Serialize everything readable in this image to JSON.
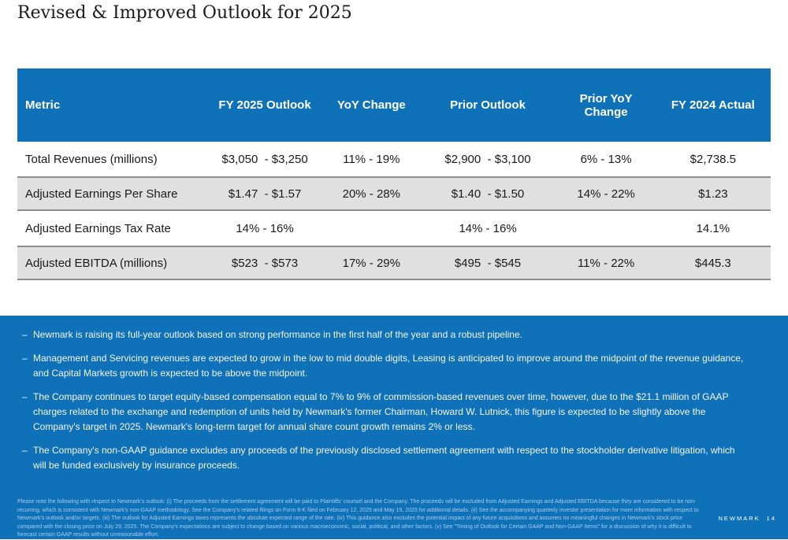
{
  "slide": {
    "title": "Revised & Improved Outlook for 2025",
    "brand": "NEWMARK",
    "page_number": "14"
  },
  "ui": {
    "bullet_marker": "–"
  },
  "table": {
    "headers": [
      "Metric",
      "FY 2025 Outlook",
      "YoY Change",
      "Prior Outlook",
      "Prior YoY Change",
      "FY 2024 Actual"
    ],
    "rows": [
      {
        "metric": "Total Revenues (millions)",
        "fy2025_outlook": "$3,050  - $3,250",
        "yoy_change": "11% - 19%",
        "prior_outlook": "$2,900  - $3,100",
        "prior_yoy_change": "6% - 13%",
        "fy2024_actual": "$2,738.5"
      },
      {
        "metric": "Adjusted Earnings Per Share",
        "fy2025_outlook": "$1.47  - $1.57",
        "yoy_change": "20% - 28%",
        "prior_outlook": "$1.40  - $1.50",
        "prior_yoy_change": "14% - 22%",
        "fy2024_actual": "$1.23"
      },
      {
        "metric": "Adjusted Earnings Tax Rate",
        "fy2025_outlook": "14% - 16%",
        "yoy_change": "",
        "prior_outlook": "14% - 16%",
        "prior_yoy_change": "",
        "fy2024_actual": "14.1%"
      },
      {
        "metric": "Adjusted EBITDA (millions)",
        "fy2025_outlook": "$523  - $573",
        "yoy_change": "17% - 29%",
        "prior_outlook": "$495  - $545",
        "prior_yoy_change": "11% - 22%",
        "fy2024_actual": "$445.3"
      }
    ]
  },
  "bullets": [
    "Newmark is raising its full-year outlook based on strong performance in the first half of the year and a robust pipeline.",
    "Management and Servicing revenues are expected to grow in the low to mid double digits, Leasing is anticipated to improve around the midpoint of the revenue guidance, and Capital Markets growth is expected to be above the midpoint.",
    "The Company continues to target equity-based compensation equal to 7% to 9% of commission-based revenues over time, however, due to the $21.1 million of GAAP charges related to the exchange and redemption of units held by Newmark's former Chairman, Howard W. Lutnick, this figure is expected to be slightly above the Company's target in 2025. Newmark's long-term target for annual share count growth remains 2% or less.",
    "The Company's non-GAAP guidance excludes any proceeds of the previously disclosed settlement agreement with respect to the stockholder derivative litigation, which will be funded exclusively by insurance proceeds."
  ],
  "footnote": "Please note the following with respect to Newmark's outlook: (i) The proceeds from the settlement agreement will be paid to Plaintiffs' counsel and the Company. The proceeds will be excluded from Adjusted Earnings and Adjusted EBITDA because they are considered to be non-recurring, which is consistent with Newmark's non-GAAP methodology. See the Company's related filings on Form 8-K filed on February 12, 2025 and May 19, 2025 for additional details. (ii) See the accompanying quarterly investor presentation for more information with respect to Newmark's outlook and/or targets. (iii) The outlook for Adjusted Earnings taxes represents the absolute expected range of the rate. (iv) This guidance also excludes the potential impact of any future acquisitions and assumes no meaningful changes in Newmark's stock price compared with the closing price on July 29, 2025. The Company's expectations are subject to change based on various macroeconomic, social, political, and other factors. (v) See \"Timing of Outlook for Certain GAAP and Non-GAAP Items\" for a discussion of why it is difficult to forecast certain GAAP results without unreasonable effort.",
  "colors": {
    "accent_blue": "#0F71B8",
    "row_gray": "#E0E0E0",
    "row_border_gray": "#8F8F8F",
    "footnote_text": "#A9CBEA"
  }
}
